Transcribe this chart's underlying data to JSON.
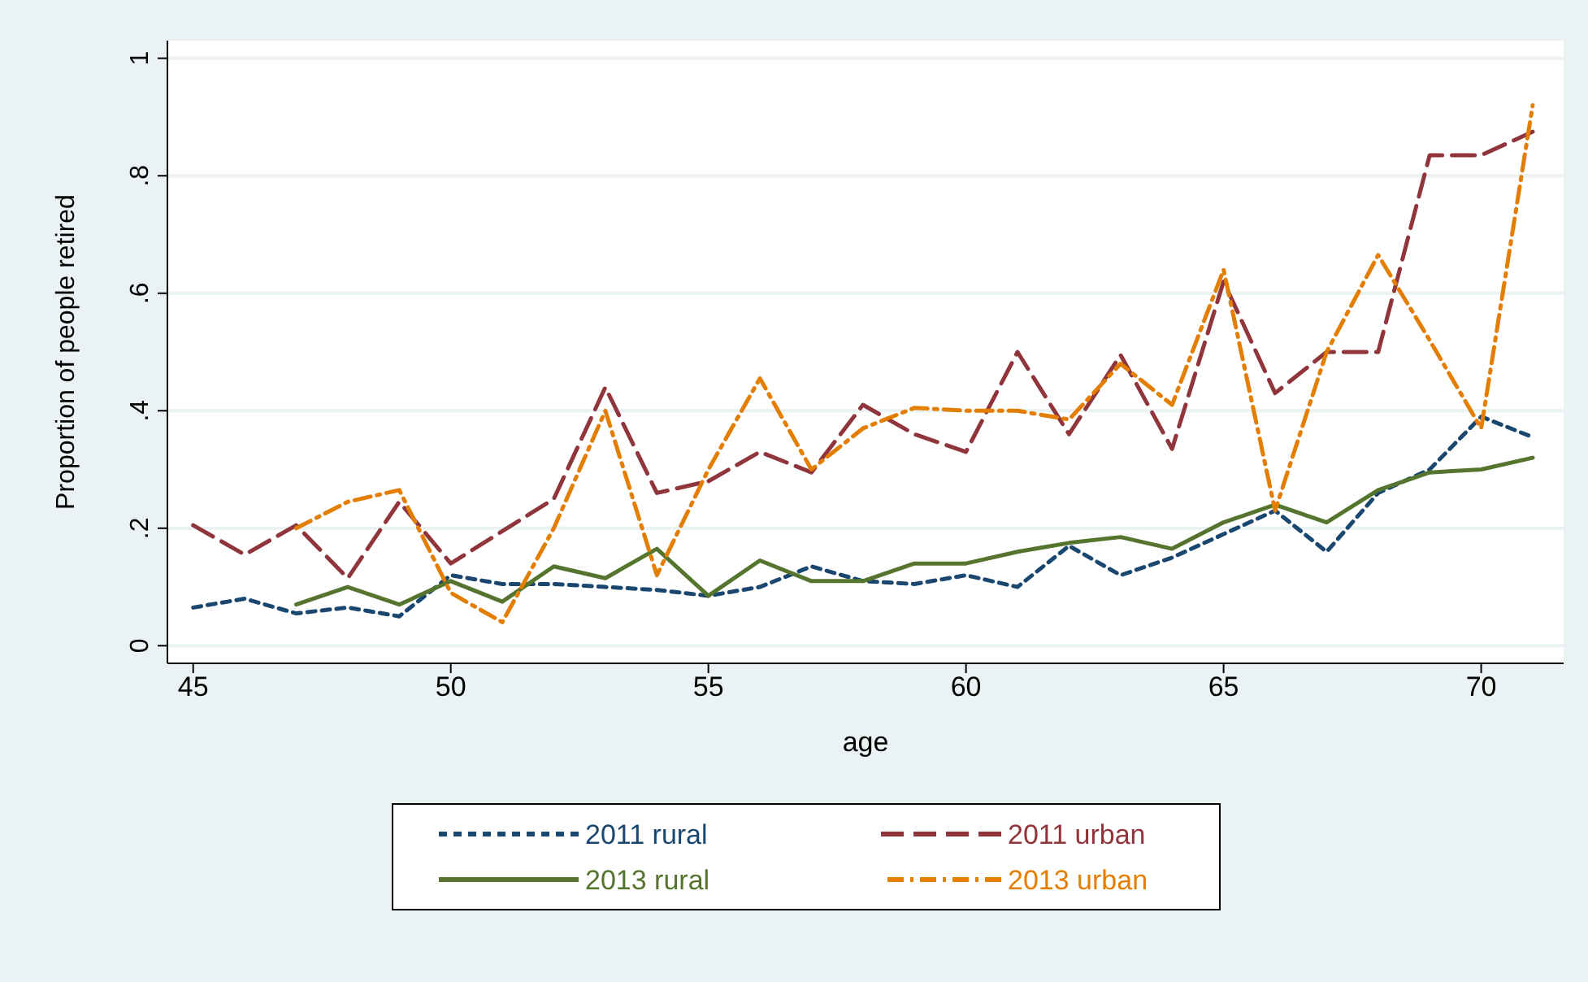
{
  "chart_data": {
    "type": "line",
    "xlabel": "age",
    "ylabel": "Proportion of people retired",
    "x": [
      45,
      46,
      47,
      48,
      49,
      50,
      51,
      52,
      53,
      54,
      55,
      56,
      57,
      58,
      59,
      60,
      61,
      62,
      63,
      64,
      65,
      66,
      67,
      68,
      69,
      70,
      71
    ],
    "series": [
      {
        "name": "2011 rural",
        "color": "#1a476f",
        "line_style": "dotted",
        "values": [
          0.065,
          0.08,
          0.055,
          0.065,
          0.05,
          0.12,
          0.105,
          0.105,
          0.1,
          0.095,
          0.085,
          0.1,
          0.135,
          0.11,
          0.105,
          0.12,
          0.1,
          0.17,
          0.12,
          0.15,
          0.19,
          0.23,
          0.16,
          0.26,
          0.3,
          0.39,
          0.355
        ]
      },
      {
        "name": "2011 urban",
        "color": "#90353b",
        "line_style": "dashed",
        "values": [
          0.205,
          0.155,
          0.205,
          0.115,
          0.245,
          0.14,
          0.195,
          0.25,
          0.44,
          0.26,
          0.28,
          0.33,
          0.295,
          0.41,
          0.36,
          0.33,
          0.5,
          0.36,
          0.495,
          0.335,
          0.62,
          0.43,
          0.5,
          0.5,
          0.835,
          0.835,
          0.875
        ]
      },
      {
        "name": "2013 rural",
        "color": "#55752f",
        "line_style": "solid",
        "values": [
          null,
          null,
          0.07,
          0.1,
          0.07,
          0.11,
          0.075,
          0.135,
          0.115,
          0.165,
          0.085,
          0.145,
          0.11,
          0.11,
          0.14,
          0.14,
          0.16,
          0.175,
          0.185,
          0.165,
          0.21,
          0.24,
          0.21,
          0.265,
          0.295,
          0.3,
          0.32
        ]
      },
      {
        "name": "2013 urban",
        "color": "#e37e00",
        "line_style": "dashdot",
        "values": [
          null,
          null,
          0.2,
          0.245,
          0.265,
          0.09,
          0.04,
          0.2,
          0.4,
          0.12,
          0.3,
          0.455,
          0.3,
          0.37,
          0.405,
          0.4,
          0.4,
          0.385,
          0.48,
          0.41,
          0.64,
          0.23,
          0.5,
          0.665,
          0.52,
          0.37,
          0.92
        ]
      }
    ],
    "xlim": [
      44.5,
      71.6
    ],
    "xticks": [
      45,
      50,
      55,
      60,
      65,
      70
    ],
    "ylim": [
      -0.03,
      1.03
    ],
    "yticks": [
      {
        "value": 0,
        "label": "0"
      },
      {
        "value": 0.2,
        "label": ".2"
      },
      {
        "value": 0.4,
        "label": ".4"
      },
      {
        "value": 0.6,
        "label": ".6"
      },
      {
        "value": 0.8,
        "label": ".8"
      },
      {
        "value": 1,
        "label": "1"
      }
    ],
    "grid": "y",
    "legend": "bottom",
    "marker": "none"
  }
}
